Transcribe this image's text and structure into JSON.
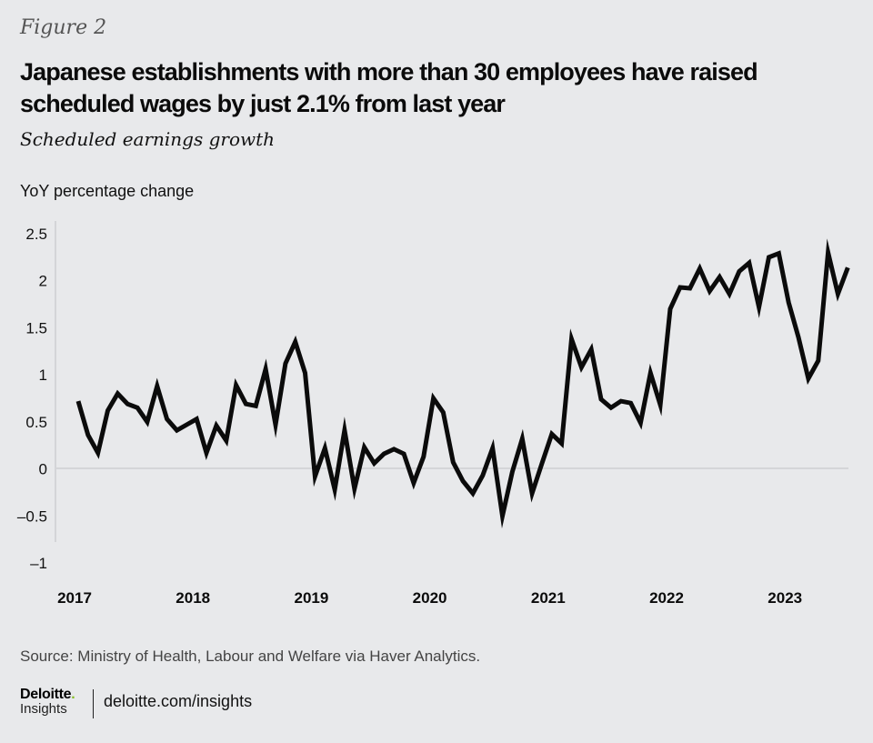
{
  "figure_label": "Figure 2",
  "title": "Japanese establishments with more than 30 employees have raised scheduled wages by just 2.1% from last year",
  "subtitle": "Scheduled earnings growth",
  "footer": {
    "source": "Source: Ministry of Health, Labour and Welfare via Haver Analytics.",
    "logo_brand": "Deloitte",
    "logo_dot": ".",
    "logo_sub": "Insights",
    "site": "deloitte.com/insights",
    "logo_dot_color": "#86bc25"
  },
  "chart_data": {
    "type": "line",
    "title": "Scheduled earnings growth",
    "xlabel": "",
    "ylabel": "YoY percentage change",
    "ylim": [
      -1,
      2.5
    ],
    "yticks": [
      2.5,
      2,
      1.5,
      1,
      0.5,
      0,
      -0.5,
      -1
    ],
    "ytick_labels": [
      "2.5",
      "2",
      "1.5",
      "1",
      "0.5",
      "0",
      "–0.5",
      "–1"
    ],
    "xticks": [
      "2017",
      "2018",
      "2019",
      "2020",
      "2021",
      "2022",
      "2023"
    ],
    "x_start": "2017-01",
    "x_frequency": "monthly",
    "grid": "zero-line only",
    "line_color": "#0b0b0b",
    "series": [
      {
        "name": "Scheduled earnings YoY % change",
        "values": [
          0.72,
          0.36,
          0.17,
          0.62,
          0.8,
          0.69,
          0.65,
          0.5,
          0.88,
          0.53,
          0.41,
          0.47,
          0.53,
          0.17,
          0.46,
          0.3,
          0.89,
          0.69,
          0.67,
          1.06,
          0.47,
          1.12,
          1.35,
          1.02,
          -0.08,
          0.22,
          -0.22,
          0.41,
          -0.21,
          0.23,
          0.06,
          0.16,
          0.21,
          0.16,
          -0.15,
          0.13,
          0.75,
          0.6,
          0.07,
          -0.13,
          -0.26,
          -0.07,
          0.22,
          -0.5,
          -0.03,
          0.32,
          -0.26,
          0.06,
          0.37,
          0.27,
          1.38,
          1.08,
          1.27,
          0.74,
          0.65,
          0.72,
          0.7,
          0.49,
          1.02,
          0.68,
          1.7,
          1.93,
          1.92,
          2.13,
          1.89,
          2.04,
          1.86,
          2.1,
          2.19,
          1.72,
          2.25,
          2.29,
          1.77,
          1.4,
          0.96,
          1.15,
          2.3,
          1.86,
          2.14
        ]
      }
    ]
  }
}
